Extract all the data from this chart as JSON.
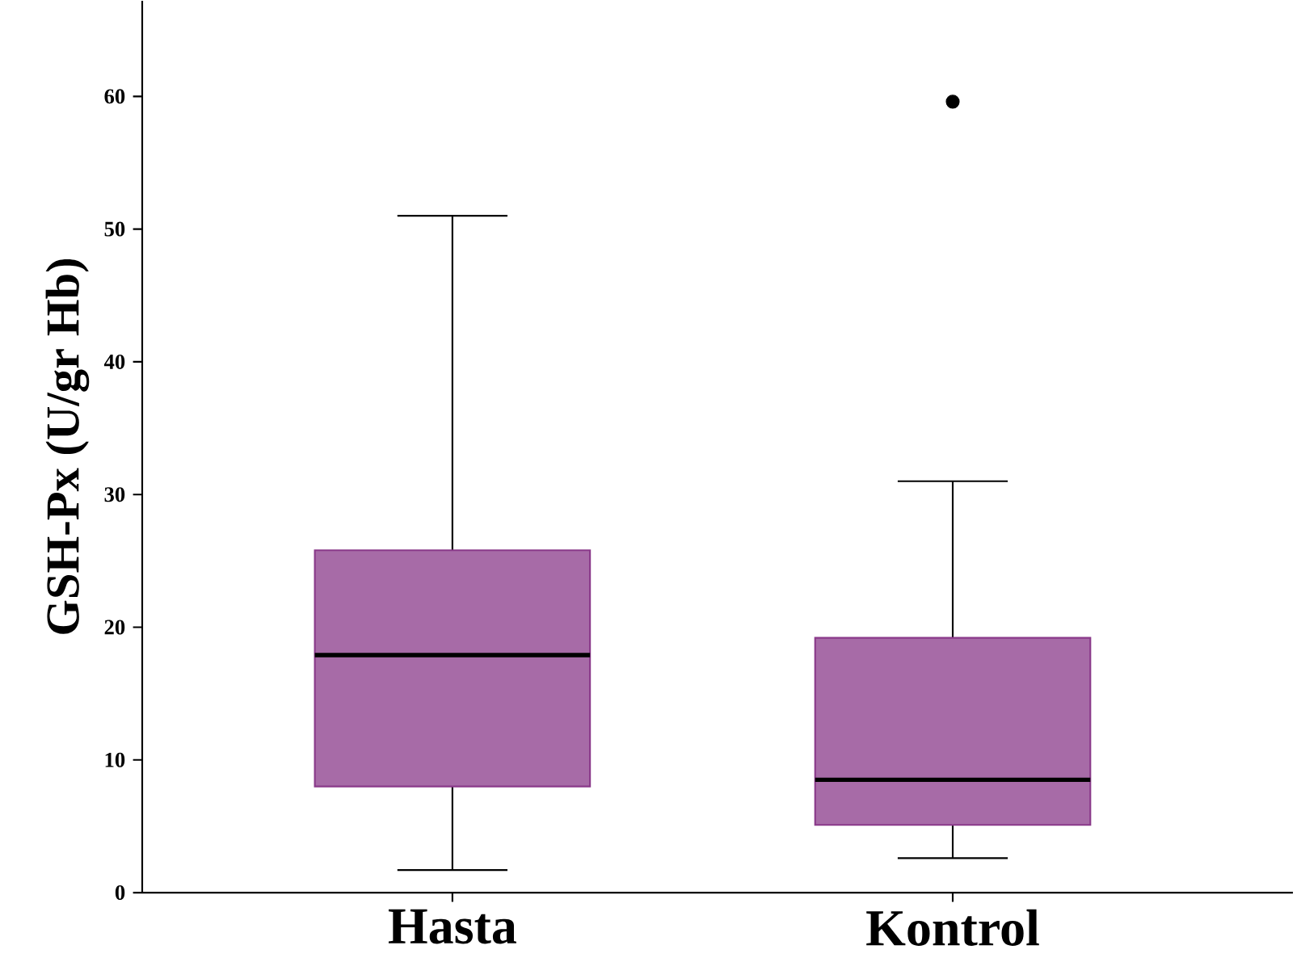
{
  "chart_data": {
    "type": "box",
    "ylabel": "GSH-Px (U/gr Hb)",
    "categories": [
      "Hasta",
      "Kontrol"
    ],
    "boxes": [
      {
        "low": 1.7,
        "q1": 8.0,
        "median": 17.9,
        "q3": 25.8,
        "high": 51.0
      },
      {
        "low": 2.6,
        "q1": 5.1,
        "median": 8.5,
        "q3": 19.2,
        "high": 31.0,
        "outliers": [
          59.6
        ]
      }
    ],
    "color": "#8a3a8a",
    "ylim": [
      0,
      67.2
    ],
    "yticks": [
      0,
      10,
      20,
      30,
      40,
      50,
      60
    ],
    "grid": false
  }
}
